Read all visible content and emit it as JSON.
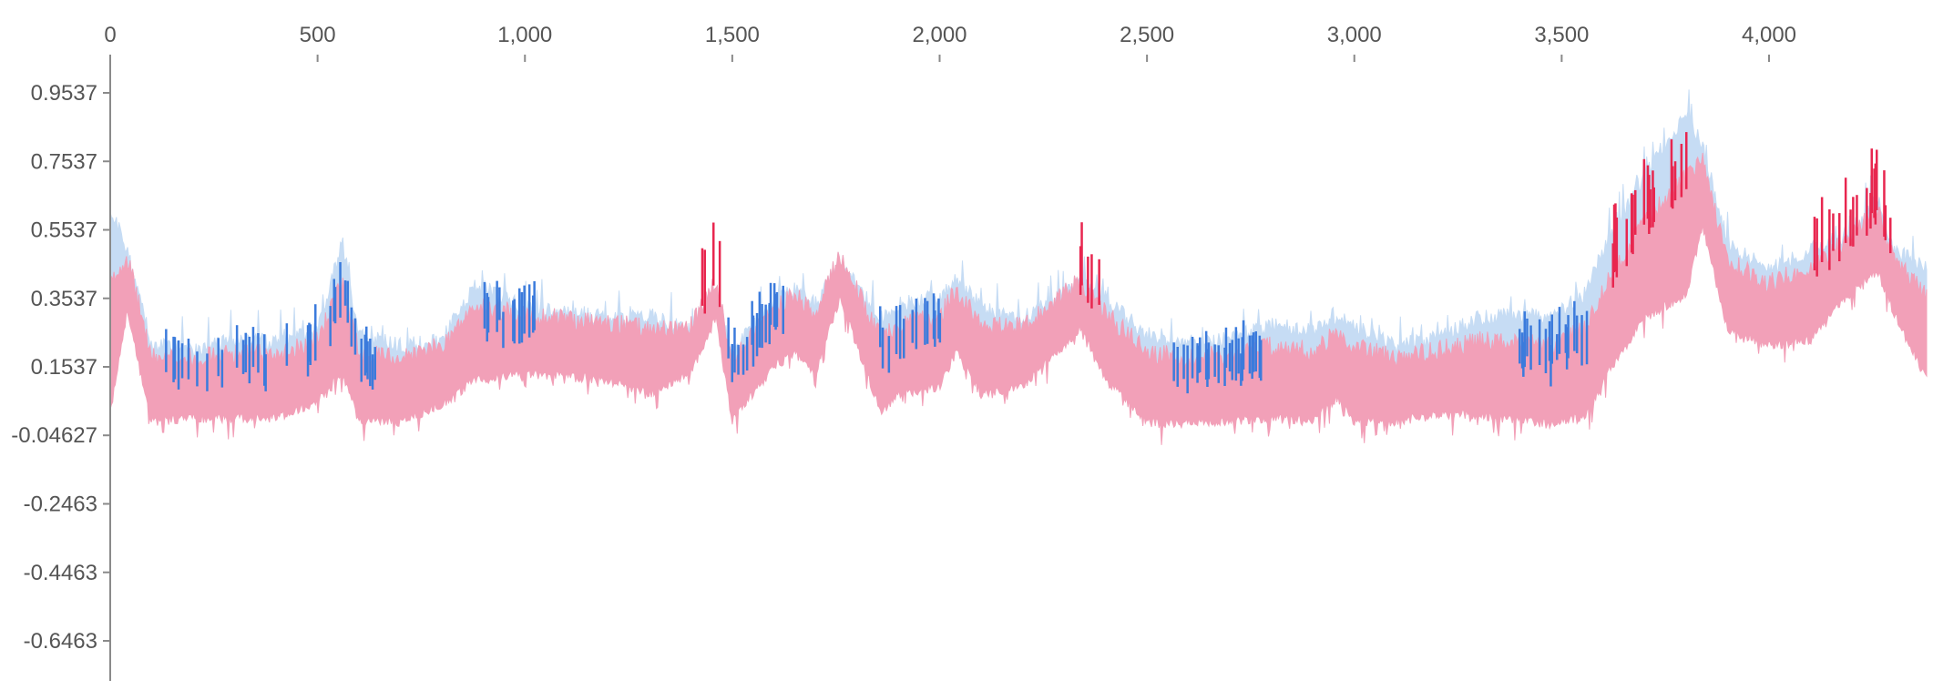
{
  "chart_data": {
    "type": "area",
    "title": "",
    "xlabel": "",
    "ylabel": "",
    "x_ticks": [
      0,
      500,
      1000,
      1500,
      2000,
      2500,
      3000,
      3500,
      4000
    ],
    "x_tick_labels": [
      "0",
      "500",
      "1,000",
      "1,500",
      "2,000",
      "2,500",
      "3,000",
      "3,500",
      "4,000"
    ],
    "y_ticks": [
      0.9537,
      0.7537,
      0.5537,
      0.3537,
      0.1537,
      -0.04627,
      -0.2463,
      -0.4463,
      -0.6463
    ],
    "y_tick_labels": [
      "0.9537",
      "0.7537",
      "0.5537",
      "0.3537",
      "0.1537",
      "-0.04627",
      "-0.2463",
      "-0.4463",
      "-0.6463"
    ],
    "xlim": [
      0,
      4380
    ],
    "ylim": [
      -0.75,
      1.0
    ],
    "grid": false,
    "legend": "none",
    "colors": {
      "upper_band": "#c6dcf4",
      "upper_overlap": "#3b7bdc",
      "lower_band": "#f2a0b8",
      "lower_overlap": "#e8264f"
    },
    "series": [
      {
        "x": [
          0,
          40,
          100,
          200,
          300,
          400,
          500,
          560,
          600,
          700,
          800,
          880,
          1000,
          1100,
          1200,
          1300,
          1400,
          1460,
          1500,
          1600,
          1650,
          1700,
          1760,
          1860,
          1900,
          2000,
          2040,
          2100,
          2200,
          2340,
          2400,
          2500,
          2560,
          2600,
          2700,
          2800,
          2900,
          2960,
          3000,
          3100,
          3200,
          3300,
          3400,
          3480,
          3560,
          3600,
          3700,
          3800,
          3840,
          3900,
          4000,
          4100,
          4200,
          4260,
          4300,
          4380
        ],
        "upper": [
          0.62,
          0.5,
          0.22,
          0.21,
          0.24,
          0.23,
          0.27,
          0.52,
          0.25,
          0.22,
          0.24,
          0.4,
          0.33,
          0.32,
          0.3,
          0.31,
          0.26,
          0.36,
          0.2,
          0.35,
          0.38,
          0.34,
          0.46,
          0.3,
          0.34,
          0.36,
          0.42,
          0.33,
          0.3,
          0.4,
          0.36,
          0.25,
          0.24,
          0.22,
          0.24,
          0.28,
          0.26,
          0.3,
          0.28,
          0.22,
          0.24,
          0.3,
          0.31,
          0.3,
          0.38,
          0.5,
          0.72,
          0.9,
          0.8,
          0.52,
          0.44,
          0.5,
          0.55,
          0.65,
          0.5,
          0.45
        ],
        "lower": [
          0.0,
          0.3,
          -0.02,
          -0.01,
          -0.01,
          -0.01,
          0.04,
          0.12,
          -0.02,
          -0.02,
          0.03,
          0.1,
          0.12,
          0.11,
          0.1,
          0.06,
          0.12,
          0.28,
          -0.02,
          0.14,
          0.18,
          0.12,
          0.34,
          0.0,
          0.06,
          0.08,
          0.18,
          0.06,
          0.08,
          0.25,
          0.1,
          -0.02,
          -0.03,
          -0.02,
          -0.02,
          -0.01,
          -0.02,
          0.05,
          -0.02,
          -0.02,
          0.0,
          0.0,
          -0.02,
          -0.03,
          0.0,
          0.1,
          0.28,
          0.35,
          0.55,
          0.25,
          0.2,
          0.22,
          0.36,
          0.42,
          0.3,
          0.1
        ]
      }
    ]
  }
}
